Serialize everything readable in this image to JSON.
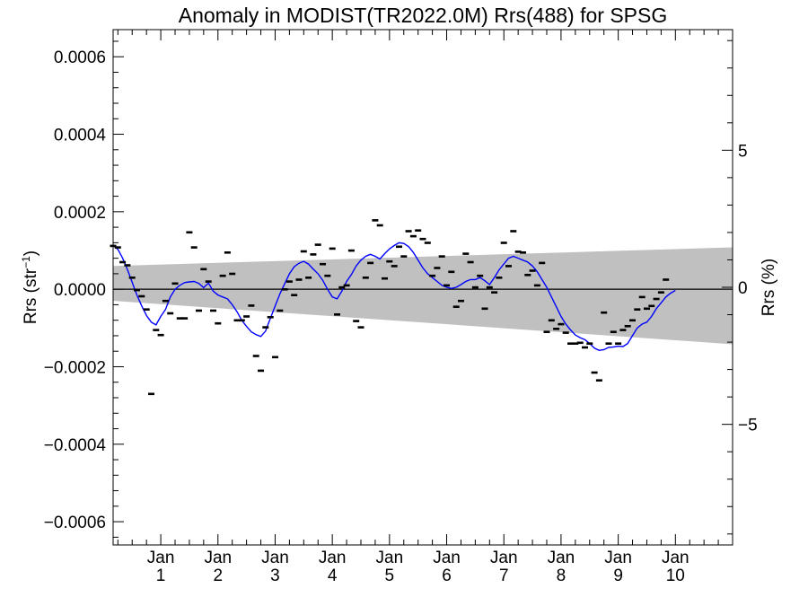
{
  "chart_data": {
    "type": "line",
    "title": "Anomaly in MODIST(TR2022.0M) Rrs(488) for SPSG",
    "ylabel_left": {
      "base": "Rrs (str",
      "sup": "−1",
      "close": ")"
    },
    "ylabel_right": "Rrs (%)",
    "xlim": [
      0,
      130
    ],
    "ylim": [
      -0.00066,
      0.00067
    ],
    "ylim_right": [
      -9.4,
      9.4
    ],
    "y_ticks": [
      {
        "value": 0.0006,
        "label": "0.0006"
      },
      {
        "value": 0.0004,
        "label": "0.0004"
      },
      {
        "value": 0.0002,
        "label": "0.0002"
      },
      {
        "value": 0.0,
        "label": "0.0000"
      },
      {
        "value": -0.0002,
        "label": "−0.0002"
      },
      {
        "value": -0.0004,
        "label": "−0.0004"
      },
      {
        "value": -0.0006,
        "label": "−0.0006"
      }
    ],
    "y_right_ticks": [
      {
        "value": 5,
        "label": "5"
      },
      {
        "value": 0,
        "label": "0"
      },
      {
        "value": -5,
        "label": "−5"
      }
    ],
    "x_ticks": [
      {
        "month": 10,
        "line1": "Jan",
        "line2": "1"
      },
      {
        "month": 22,
        "line1": "Jan",
        "line2": "2"
      },
      {
        "month": 34,
        "line1": "Jan",
        "line2": "3"
      },
      {
        "month": 46,
        "line1": "Jan",
        "line2": "4"
      },
      {
        "month": 58,
        "line1": "Jan",
        "line2": "5"
      },
      {
        "month": 70,
        "line1": "Jan",
        "line2": "6"
      },
      {
        "month": 82,
        "line1": "Jan",
        "line2": "7"
      },
      {
        "month": 94,
        "line1": "Jan",
        "line2": "8"
      },
      {
        "month": 106,
        "line1": "Jan",
        "line2": "9"
      },
      {
        "month": 118,
        "line1": "Jan",
        "line2": "10"
      }
    ],
    "band": {
      "left": [
        6e-05,
        -3e-05
      ],
      "right": [
        0.000108,
        -0.000142
      ],
      "color": "#c0c0c0"
    },
    "colors": {
      "smooth": "#0000ff",
      "points": "#000000",
      "zero_line": "#000000",
      "background": "#ffffff"
    },
    "smooth": [
      [
        0,
        0.000113
      ],
      [
        1,
        0.000103
      ],
      [
        2,
        8e-05
      ],
      [
        3,
        5.1e-05
      ],
      [
        4,
        1.8e-05
      ],
      [
        5,
        -1.5e-05
      ],
      [
        6,
        -4.3e-05
      ],
      [
        7,
        -6.8e-05
      ],
      [
        8,
        -8.5e-05
      ],
      [
        9,
        -9.2e-05
      ],
      [
        10,
        -7e-05
      ],
      [
        11,
        -5.2e-05
      ],
      [
        12,
        -2e-05
      ],
      [
        13,
        0.0
      ],
      [
        14,
        1e-05
      ],
      [
        15,
        1.7e-05
      ],
      [
        16,
        1.9e-05
      ],
      [
        17,
        2e-05
      ],
      [
        18,
        1.5e-05
      ],
      [
        19,
        4e-06
      ],
      [
        20,
        1.6e-05
      ],
      [
        21,
        -5e-06
      ],
      [
        22,
        -1.5e-05
      ],
      [
        23,
        -2e-05
      ],
      [
        24,
        -2.5e-05
      ],
      [
        25,
        -4e-05
      ],
      [
        26,
        -5.8e-05
      ],
      [
        27,
        -8e-05
      ],
      [
        28,
        -9.6e-05
      ],
      [
        29,
        -0.00011
      ],
      [
        30,
        -0.000117
      ],
      [
        31,
        -0.000122
      ],
      [
        32,
        -0.000108
      ],
      [
        33,
        -7.5e-05
      ],
      [
        34,
        -4.3e-05
      ],
      [
        35,
        -1.2e-05
      ],
      [
        36,
        1.4e-05
      ],
      [
        37,
        4e-05
      ],
      [
        38,
        5.8e-05
      ],
      [
        39,
        6.7e-05
      ],
      [
        40,
        7.2e-05
      ],
      [
        41,
        6.5e-05
      ],
      [
        42,
        5.2e-05
      ],
      [
        43,
        4e-05
      ],
      [
        44,
        2.3e-05
      ],
      [
        45,
        0.0
      ],
      [
        46,
        -2e-05
      ],
      [
        47,
        -2.5e-05
      ],
      [
        48,
        -5e-06
      ],
      [
        49,
        2e-05
      ],
      [
        50,
        3.8e-05
      ],
      [
        51,
        6e-05
      ],
      [
        52,
        7.5e-05
      ],
      [
        53,
        8.5e-05
      ],
      [
        54,
        9e-05
      ],
      [
        55,
        8.5e-05
      ],
      [
        56,
        7.8e-05
      ],
      [
        57,
        9.2e-05
      ],
      [
        58,
        0.000104
      ],
      [
        59,
        0.000113
      ],
      [
        60,
        0.00012
      ],
      [
        61,
        0.000118
      ],
      [
        62,
        0.00011
      ],
      [
        63,
        9.5e-05
      ],
      [
        64,
        7.5e-05
      ],
      [
        65,
        5.5e-05
      ],
      [
        66,
        4e-05
      ],
      [
        67,
        3e-05
      ],
      [
        68,
        2e-05
      ],
      [
        69,
        1e-05
      ],
      [
        70,
        5e-06
      ],
      [
        71,
        2e-06
      ],
      [
        72,
        5e-06
      ],
      [
        73,
        1.2e-05
      ],
      [
        74,
        2e-05
      ],
      [
        75,
        2.5e-05
      ],
      [
        76,
        2.5e-05
      ],
      [
        77,
        3e-05
      ],
      [
        78,
        2.2e-05
      ],
      [
        79,
        1.2e-05
      ],
      [
        80,
        3e-05
      ],
      [
        81,
        5e-05
      ],
      [
        82,
        6.5e-05
      ],
      [
        83,
        8e-05
      ],
      [
        84,
        8.5e-05
      ],
      [
        85,
        8e-05
      ],
      [
        86,
        7.5e-05
      ],
      [
        87,
        7e-05
      ],
      [
        88,
        6e-05
      ],
      [
        89,
        4.5e-05
      ],
      [
        90,
        2.5e-05
      ],
      [
        91,
        5e-06
      ],
      [
        92,
        -2e-05
      ],
      [
        93,
        -4.5e-05
      ],
      [
        94,
        -7e-05
      ],
      [
        95,
        -9e-05
      ],
      [
        96,
        -0.000105
      ],
      [
        97,
        -0.000118
      ],
      [
        98,
        -0.000125
      ],
      [
        99,
        -0.00013
      ],
      [
        100,
        -0.00014
      ],
      [
        101,
        -0.000152
      ],
      [
        102,
        -0.000158
      ],
      [
        103,
        -0.000156
      ],
      [
        104,
        -0.00015
      ],
      [
        105,
        -0.000149
      ],
      [
        106,
        -0.000147
      ],
      [
        107,
        -0.000148
      ],
      [
        108,
        -0.00014
      ],
      [
        109,
        -0.00012
      ],
      [
        110,
        -0.0001
      ],
      [
        111,
        -9e-05
      ],
      [
        112,
        -8.5e-05
      ],
      [
        113,
        -7e-05
      ],
      [
        114,
        -5e-05
      ],
      [
        115,
        -3.5e-05
      ],
      [
        116,
        -2e-05
      ],
      [
        117,
        -1e-05
      ],
      [
        118,
        -3e-06
      ]
    ],
    "points": [
      [
        0,
        0.000112
      ],
      [
        1,
        0.000108
      ],
      [
        2,
        7e-05
      ],
      [
        3,
        6.2e-05
      ],
      [
        4,
        3e-05
      ],
      [
        5,
        -2e-06
      ],
      [
        6,
        -1.8e-05
      ],
      [
        7,
        -5.2e-05
      ],
      [
        8,
        -0.00027
      ],
      [
        9,
        -0.000105
      ],
      [
        10,
        -0.000118
      ],
      [
        11,
        -3e-05
      ],
      [
        12,
        -6.2e-05
      ],
      [
        13,
        1.5e-05
      ],
      [
        14,
        -7.5e-05
      ],
      [
        15,
        -7.5e-05
      ],
      [
        16,
        0.000147
      ],
      [
        17,
        0.000108
      ],
      [
        18,
        -5.5e-05
      ],
      [
        19,
        5.2e-05
      ],
      [
        20,
        2e-05
      ],
      [
        21,
        -5.5e-05
      ],
      [
        22,
        -8.8e-05
      ],
      [
        23,
        3.5e-05
      ],
      [
        24,
        9.5e-05
      ],
      [
        25,
        4e-05
      ],
      [
        26,
        -8e-05
      ],
      [
        27,
        -8e-05
      ],
      [
        28,
        -7e-05
      ],
      [
        29,
        -4.2e-05
      ],
      [
        30,
        -0.000172
      ],
      [
        31,
        -0.00021
      ],
      [
        32,
        -9.8e-05
      ],
      [
        33,
        -7.2e-05
      ],
      [
        34,
        -0.000175
      ],
      [
        35,
        -5.5e-05
      ],
      [
        36,
        0.0
      ],
      [
        37,
        2e-05
      ],
      [
        38,
        -1.5e-05
      ],
      [
        39,
        2.5e-05
      ],
      [
        40,
        9.8e-05
      ],
      [
        41,
        3e-05
      ],
      [
        42,
        9e-05
      ],
      [
        43,
        0.000115
      ],
      [
        44,
        6.5e-05
      ],
      [
        45,
        3.5e-05
      ],
      [
        46,
        0.000105
      ],
      [
        47,
        -6.5e-05
      ],
      [
        48,
        5e-06
      ],
      [
        49,
        1e-05
      ],
      [
        50,
        0.0001
      ],
      [
        51,
        -8.2e-05
      ],
      [
        52,
        -9.8e-05
      ],
      [
        53,
        3e-05
      ],
      [
        54,
        6.8e-05
      ],
      [
        55,
        0.000178
      ],
      [
        56,
        0.000165
      ],
      [
        57,
        2.8e-05
      ],
      [
        58,
        7.2e-05
      ],
      [
        59,
        6e-05
      ],
      [
        60,
        0.00011
      ],
      [
        61,
        8.5e-05
      ],
      [
        62,
        0.00015
      ],
      [
        63,
        0.000137
      ],
      [
        64,
        0.000152
      ],
      [
        65,
        0.00013
      ],
      [
        66,
        0.00012
      ],
      [
        67,
        3.5e-05
      ],
      [
        68,
        5.5e-05
      ],
      [
        69,
        8.5e-05
      ],
      [
        70,
        1e-05
      ],
      [
        71,
        4.5e-05
      ],
      [
        72,
        -4.5e-05
      ],
      [
        73,
        -3e-05
      ],
      [
        74,
        9.2e-05
      ],
      [
        75,
        7e-05
      ],
      [
        76,
        5e-06
      ],
      [
        77,
        3.5e-05
      ],
      [
        78,
        -5e-05
      ],
      [
        79,
        5e-06
      ],
      [
        80,
        -8e-06
      ],
      [
        81,
        3e-05
      ],
      [
        82,
        0.00012
      ],
      [
        83,
        6e-05
      ],
      [
        84,
        0.00015
      ],
      [
        85,
        9.7e-05
      ],
      [
        86,
        9.5e-05
      ],
      [
        87,
        3.7e-05
      ],
      [
        88,
        4.8e-05
      ],
      [
        89,
        1e-05
      ],
      [
        90,
        6.8e-05
      ],
      [
        91,
        -0.00011
      ],
      [
        92,
        -8e-05
      ],
      [
        93,
        -0.000102
      ],
      [
        94,
        -9e-05
      ],
      [
        95,
        -0.000112
      ],
      [
        96,
        -0.00014
      ],
      [
        97,
        -0.00014
      ],
      [
        98,
        -0.000138
      ],
      [
        99,
        -0.00015
      ],
      [
        100,
        -0.00014
      ],
      [
        101,
        -0.000215
      ],
      [
        102,
        -0.000235
      ],
      [
        103,
        -6e-05
      ],
      [
        104,
        -0.00014
      ],
      [
        105,
        -0.00011
      ],
      [
        106,
        -0.00014
      ],
      [
        107,
        -0.000105
      ],
      [
        108,
        -9.5e-05
      ],
      [
        109,
        -8e-05
      ],
      [
        110,
        -5.2e-05
      ],
      [
        111,
        -2e-05
      ],
      [
        112,
        -5e-05
      ],
      [
        113,
        -4.3e-05
      ],
      [
        114,
        -2.5e-05
      ],
      [
        115,
        -8e-06
      ],
      [
        116,
        2.5e-05
      ]
    ]
  }
}
